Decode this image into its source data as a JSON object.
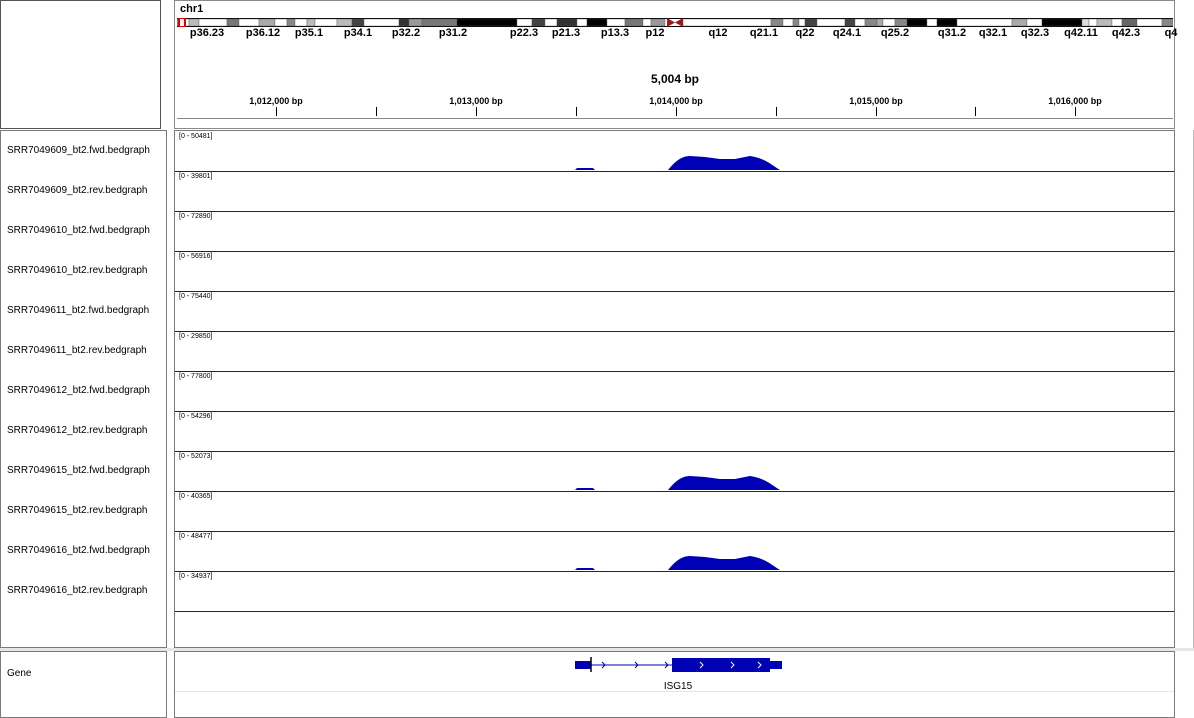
{
  "header": {
    "chromosome": "chr1",
    "bands": [
      "p36.23",
      "p36.12",
      "p35.1",
      "p34.1",
      "p32.2",
      "p31.2",
      "p22.3",
      "p21.3",
      "p13.3",
      "p12",
      "q12",
      "q21.1",
      "q22",
      "q24.1",
      "q25.2",
      "q31.2",
      "q32.1",
      "q32.3",
      "q42.11",
      "q42.3",
      "q4"
    ],
    "span_label": "5,004 bp",
    "ruler_labels": [
      "1,012,000 bp",
      "1,013,000 bp",
      "1,014,000 bp",
      "1,015,000 bp",
      "1,016,000 bp"
    ]
  },
  "tracks": [
    {
      "name": "SRR7049609_bt2.fwd.bedgraph",
      "range": "[0 - 50481]",
      "signal": true
    },
    {
      "name": "SRR7049609_bt2.rev.bedgraph",
      "range": "[0 - 39801]",
      "signal": false
    },
    {
      "name": "SRR7049610_bt2.fwd.bedgraph",
      "range": "[0 - 72890]",
      "signal": false
    },
    {
      "name": "SRR7049610_bt2.rev.bedgraph",
      "range": "[0 - 56916]",
      "signal": false
    },
    {
      "name": "SRR7049611_bt2.fwd.bedgraph",
      "range": "[0 - 75440]",
      "signal": false
    },
    {
      "name": "SRR7049611_bt2.rev.bedgraph",
      "range": "[0 - 29850]",
      "signal": false
    },
    {
      "name": "SRR7049612_bt2.fwd.bedgraph",
      "range": "[0 - 77800]",
      "signal": false
    },
    {
      "name": "SRR7049612_bt2.rev.bedgraph",
      "range": "[0 - 54296]",
      "signal": false
    },
    {
      "name": "SRR7049615_bt2.fwd.bedgraph",
      "range": "[0 - 52073]",
      "signal": true
    },
    {
      "name": "SRR7049615_bt2.rev.bedgraph",
      "range": "[0 - 40365]",
      "signal": false
    },
    {
      "name": "SRR7049616_bt2.fwd.bedgraph",
      "range": "[0 - 48477]",
      "signal": true
    },
    {
      "name": "SRR7049616_bt2.rev.bedgraph",
      "range": "[0 - 34937]",
      "signal": false
    }
  ],
  "gene_track": {
    "name": "Gene",
    "gene": "ISG15"
  },
  "colors": {
    "signal": "#0000b4",
    "gene": "#0000b4",
    "track_border": "#1a1a80"
  }
}
